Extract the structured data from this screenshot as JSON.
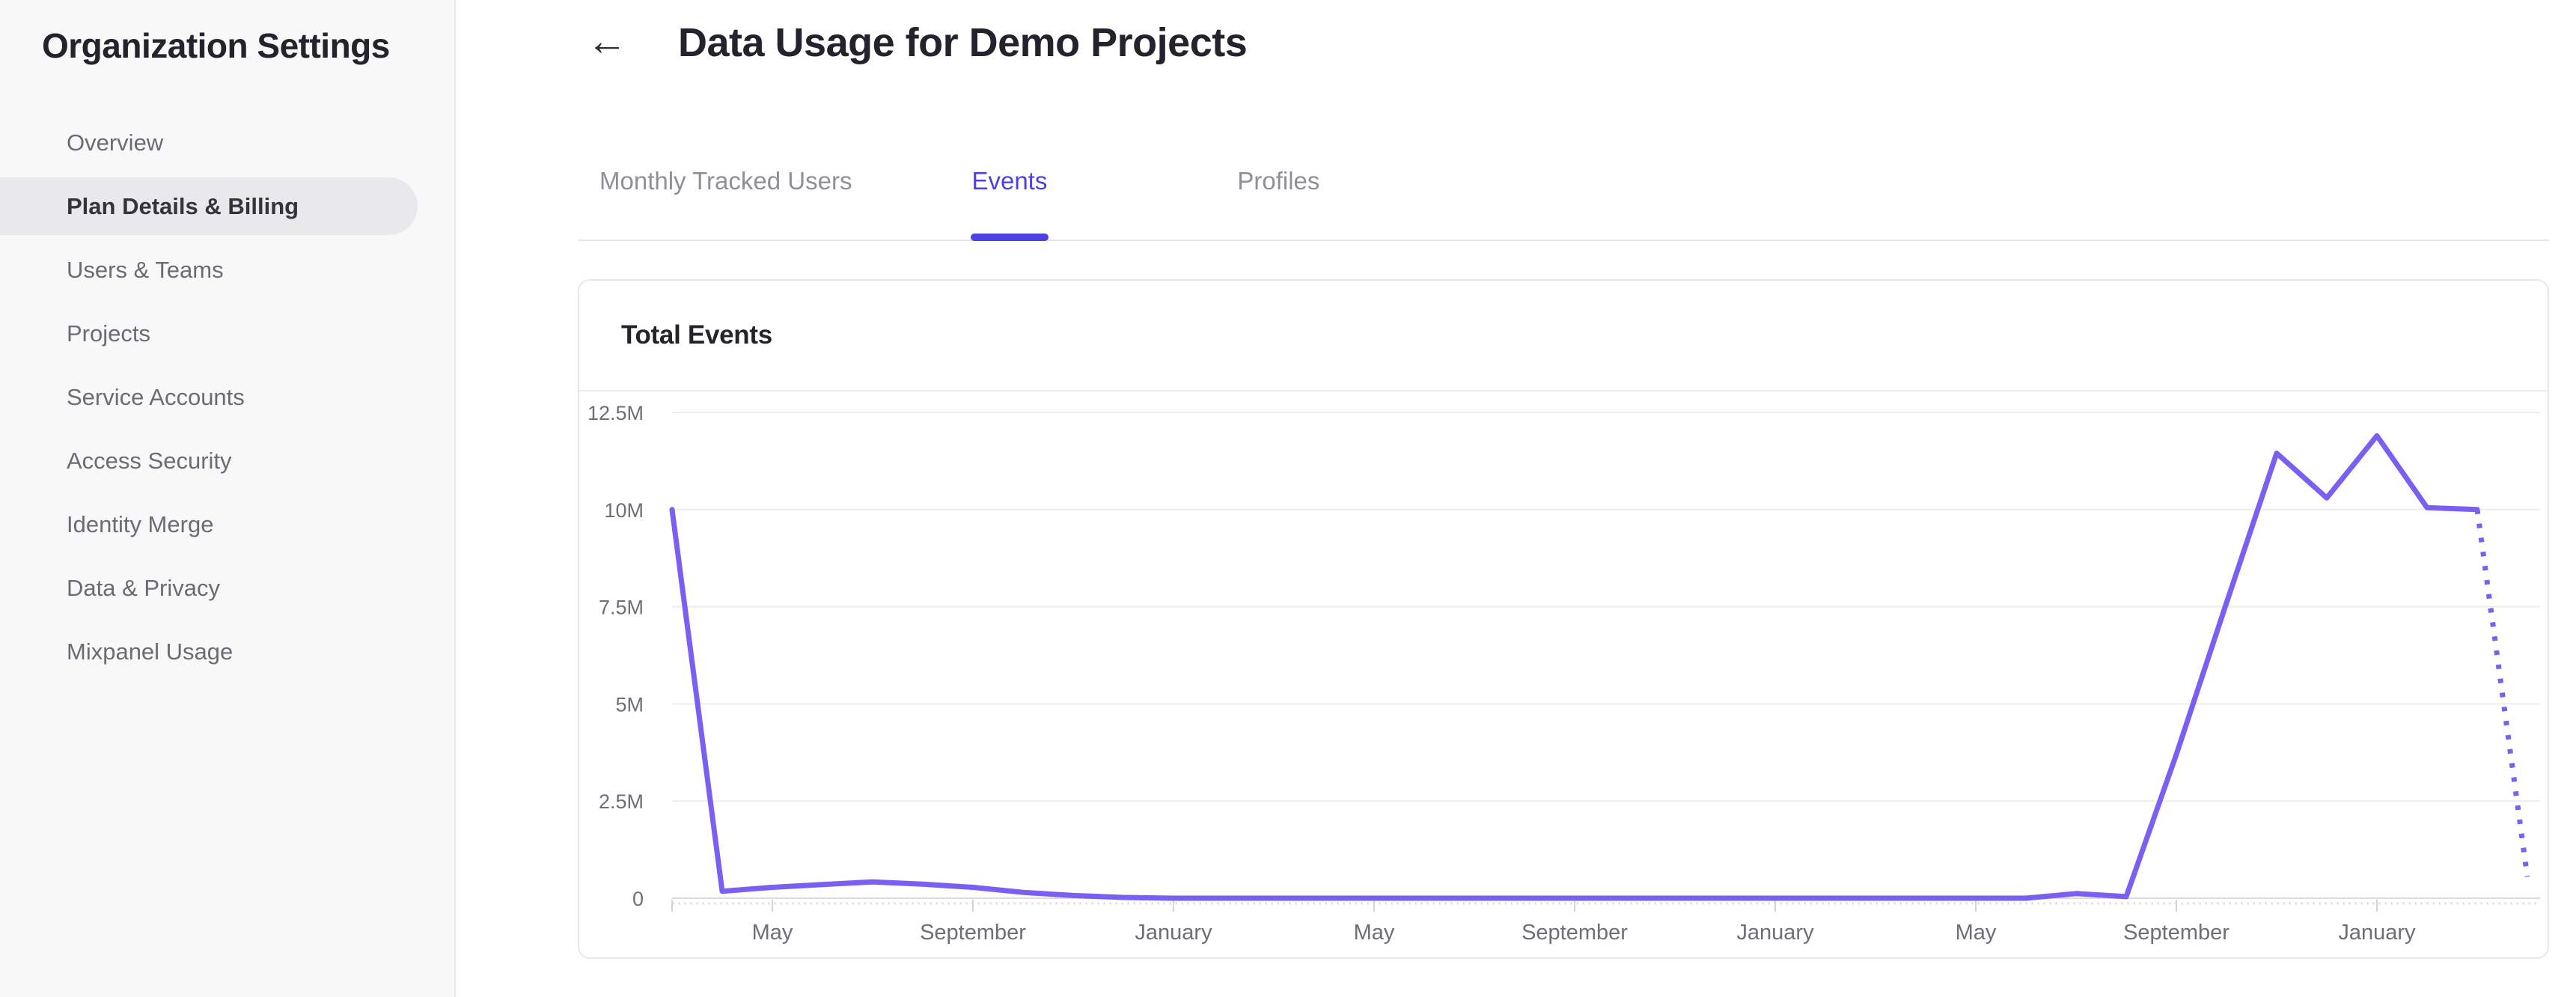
{
  "sidebar": {
    "title": "Organization Settings",
    "items": [
      {
        "label": "Overview",
        "selected": false
      },
      {
        "label": "Plan Details & Billing",
        "selected": true
      },
      {
        "label": "Users & Teams",
        "selected": false
      },
      {
        "label": "Projects",
        "selected": false
      },
      {
        "label": "Service Accounts",
        "selected": false
      },
      {
        "label": "Access Security",
        "selected": false
      },
      {
        "label": "Identity Merge",
        "selected": false
      },
      {
        "label": "Data & Privacy",
        "selected": false
      },
      {
        "label": "Mixpanel Usage",
        "selected": false
      }
    ]
  },
  "header": {
    "back_icon": "←",
    "title": "Data Usage for Demo Projects"
  },
  "tabs": [
    {
      "label": "Monthly Tracked Users",
      "active": false
    },
    {
      "label": "Events",
      "active": true
    },
    {
      "label": "Profiles",
      "active": false
    }
  ],
  "card": {
    "title": "Total Events"
  },
  "colors": {
    "accent_tab": "#4C41E3",
    "chart_line": "#7A5FF2",
    "sidebar_bg": "#F8F8F9",
    "selected_item_bg": "#E9E9EB"
  },
  "chart_data": {
    "type": "line",
    "title": "Total Events",
    "grid": "horizontal",
    "legend": false,
    "y_axis": {
      "unit": "events",
      "range": [
        0,
        12.5
      ],
      "ticks": [
        {
          "value": 0,
          "label": "0"
        },
        {
          "value": 2.5,
          "label": "2.5M"
        },
        {
          "value": 5,
          "label": "5M"
        },
        {
          "value": 7.5,
          "label": "7.5M"
        },
        {
          "value": 10,
          "label": "10M"
        },
        {
          "value": 12.5,
          "label": "12.5M"
        }
      ]
    },
    "x_axis": {
      "unit": "month",
      "points": 38,
      "ticks": [
        {
          "index": 0,
          "label": ""
        },
        {
          "index": 2,
          "label": "May"
        },
        {
          "index": 6,
          "label": "September"
        },
        {
          "index": 10,
          "label": "January"
        },
        {
          "index": 14,
          "label": "May"
        },
        {
          "index": 18,
          "label": "September"
        },
        {
          "index": 22,
          "label": "January"
        },
        {
          "index": 26,
          "label": "May"
        },
        {
          "index": 30,
          "label": "September"
        },
        {
          "index": 34,
          "label": "January"
        }
      ]
    },
    "series": [
      {
        "name": "Total Events",
        "color": "#7A5FF2",
        "projected_tail_points": 1,
        "values_millions": [
          10,
          0.18,
          0.28,
          0.35,
          0.42,
          0.36,
          0.28,
          0.15,
          0.07,
          0.02,
          0,
          0,
          0,
          0,
          0,
          0,
          0,
          0,
          0,
          0,
          0,
          0,
          0,
          0,
          0,
          0,
          0,
          0,
          0.12,
          0.04,
          3.7,
          7.6,
          11.45,
          10.3,
          11.9,
          10.05,
          10,
          0.55
        ]
      }
    ]
  }
}
